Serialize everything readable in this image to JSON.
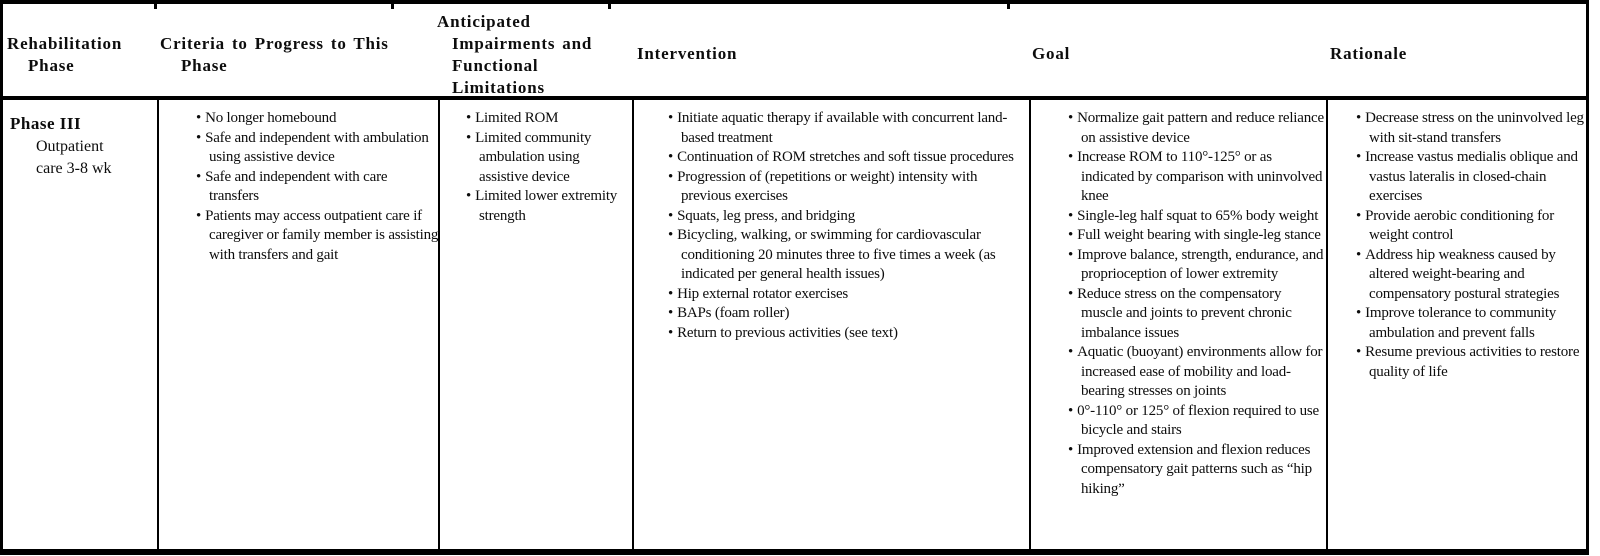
{
  "table": {
    "headers": {
      "phase_lines": [
        "Rehabilitation",
        "Phase"
      ],
      "criteria_lines": [
        "Criteria to Progress to This",
        "Phase"
      ],
      "impairments_lines": [
        "Anticipated",
        "Impairments and",
        "Functional",
        "Limitations"
      ],
      "intervention": "Intervention",
      "goal": "Goal",
      "rationale": "Rationale"
    },
    "row": {
      "phase": {
        "title": "Phase III",
        "subtitle_lines": [
          "Outpatient",
          "care 3-8 wk"
        ]
      },
      "criteria_bullets": [
        "No longer homebound",
        "Safe and independent with ambulation using assistive device",
        "Safe and independent with care transfers",
        "Patients may access outpatient care if caregiver or family member is assisting with transfers and gait"
      ],
      "impairments_bullets": [
        "Limited ROM",
        "Limited community ambulation using assistive device",
        "Limited lower extremity strength"
      ],
      "intervention_bullets": [
        "Initiate aquatic therapy if available with concurrent land-based treatment",
        "Continuation of ROM stretches and soft tissue procedures",
        "Progression of (repetitions or weight) intensity with previous exercises",
        "Squats, leg press, and bridging",
        "Bicycling, walking, or swimming for cardiovascular conditioning 20 minutes three to five times a week (as indicated per general health issues)",
        "Hip external rotator exercises",
        "BAPs (foam roller)",
        "Return to previous activities (see text)"
      ],
      "goal_bullets": [
        "Normalize gait pattern and reduce reliance on assistive device",
        "Increase ROM to 110°-125° or as indicated by comparison with uninvolved knee",
        "Single-leg half squat to 65% body weight",
        "Full weight bearing with single-leg stance",
        "Improve balance, strength, endurance, and proprioception of lower extremity",
        "Reduce stress on the compensatory muscle and joints to prevent chronic imbalance issues",
        "Aquatic (buoyant) environments allow for increased ease of mobility and load-bearing stresses on joints",
        "0°-110° or 125° of flexion required to use bicycle and stairs",
        "Improved extension and flexion reduces compensatory gait patterns such as “hip hiking”"
      ],
      "rationale_bullets": [
        "Decrease stress on the uninvolved leg with sit-stand transfers",
        "Increase vastus medialis oblique and vastus lateralis in closed-chain exercises",
        "Provide aerobic conditioning for weight control",
        "Address hip weakness caused by altered weight-bearing and compensatory postural strategies",
        "Improve tolerance to community ambulation and prevent falls",
        "Resume previous activities to restore quality of life"
      ]
    }
  }
}
